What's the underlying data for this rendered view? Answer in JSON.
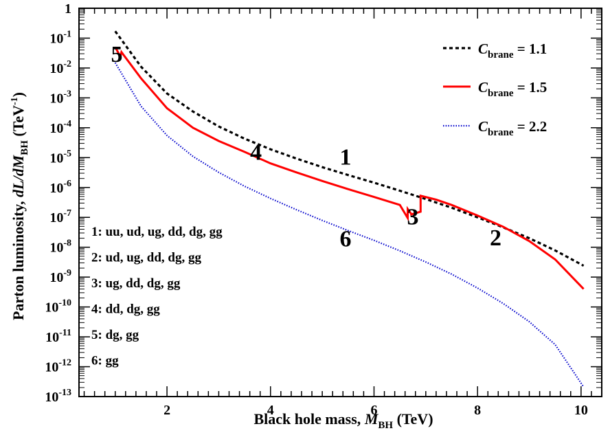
{
  "chart_data": {
    "type": "line",
    "xlabel": "Black hole mass, M_BH (TeV)",
    "ylabel": "Parton luminosity, dL/dM_BH (TeV^-1)",
    "xlim": [
      0.3,
      10.4
    ],
    "ylim": [
      1e-13,
      1
    ],
    "yscale": "log",
    "xticks": [
      2,
      4,
      6,
      8,
      10
    ],
    "yticks": [
      {
        "value": 1,
        "base": "1",
        "exp": ""
      },
      {
        "value": 0.1,
        "base": "10",
        "exp": "-1"
      },
      {
        "value": 0.01,
        "base": "10",
        "exp": "-2"
      },
      {
        "value": 0.001,
        "base": "10",
        "exp": "-3"
      },
      {
        "value": 0.0001,
        "base": "10",
        "exp": "-4"
      },
      {
        "value": 1e-05,
        "base": "10",
        "exp": "-5"
      },
      {
        "value": 1e-06,
        "base": "10",
        "exp": "-6"
      },
      {
        "value": 1e-07,
        "base": "10",
        "exp": "-7"
      },
      {
        "value": 1e-08,
        "base": "10",
        "exp": "-8"
      },
      {
        "value": 1e-09,
        "base": "10",
        "exp": "-9"
      },
      {
        "value": 1e-10,
        "base": "10",
        "exp": "-10"
      },
      {
        "value": 1e-11,
        "base": "10",
        "exp": "-11"
      },
      {
        "value": 1e-12,
        "base": "10",
        "exp": "-12"
      },
      {
        "value": 1e-13,
        "base": "10",
        "exp": "-13"
      }
    ],
    "legend_position": "top-right",
    "series": [
      {
        "name": "C_brane = 1.1",
        "label_main": "C",
        "label_sub": "brane",
        "label_value": "= 1.1",
        "color": "#000000",
        "style": "dashed",
        "x": [
          1.0,
          1.5,
          2.0,
          2.5,
          3.0,
          3.5,
          4.0,
          4.5,
          5.0,
          5.5,
          6.0,
          6.5,
          7.0,
          7.5,
          8.0,
          8.5,
          9.0,
          9.5,
          10.05
        ],
        "y": [
          0.17,
          0.011,
          0.0014,
          0.00035,
          0.00011,
          4.3e-05,
          1.9e-05,
          9.3e-06,
          4.8e-06,
          2.6e-06,
          1.45e-06,
          7.8e-07,
          4.1e-07,
          2.1e-07,
          1e-07,
          4.6e-08,
          2e-08,
          7.8e-09,
          2.4e-09
        ]
      },
      {
        "name": "C_brane = 1.5",
        "label_main": "C",
        "label_sub": "brane",
        "label_value": "= 1.5",
        "color": "#ff0000",
        "style": "solid",
        "x": [
          1.0,
          1.1,
          1.12,
          1.5,
          2.0,
          2.5,
          3.0,
          3.5,
          4.0,
          4.5,
          5.0,
          5.5,
          6.0,
          6.5,
          6.65,
          6.65,
          6.72,
          6.72,
          6.9,
          6.9,
          7.2,
          7.5,
          8.0,
          8.5,
          9.0,
          9.5,
          10.05
        ],
        "y": [
          0.05,
          0.024,
          0.034,
          0.0045,
          0.00045,
          0.0001,
          3.6e-05,
          1.55e-05,
          6.4e-06,
          3.2e-06,
          1.65e-06,
          8.8e-07,
          4.8e-07,
          2.6e-07,
          9.5e-08,
          1.9e-07,
          1.3e-07,
          1.25e-07,
          1.55e-07,
          5.3e-07,
          3.9e-07,
          2.6e-07,
          1.15e-07,
          4.8e-08,
          1.6e-08,
          3.9e-09,
          4e-10
        ]
      },
      {
        "name": "C_brane = 2.2",
        "label_main": "C",
        "label_sub": "brane",
        "label_value": "= 2.2",
        "color": "#0000cc",
        "style": "dotted",
        "x": [
          1.0,
          1.5,
          2.0,
          2.5,
          3.0,
          3.5,
          4.0,
          4.5,
          5.0,
          5.5,
          6.0,
          6.5,
          7.0,
          7.5,
          8.0,
          8.5,
          9.0,
          9.5,
          10.05
        ],
        "y": [
          0.015,
          0.00052,
          5.5e-05,
          1.1e-05,
          3.2e-06,
          1.1e-06,
          4.3e-07,
          1.8e-07,
          7.9e-08,
          3.6e-08,
          1.7e-08,
          7.6e-09,
          3.2e-09,
          1.25e-09,
          4.3e-10,
          1.3e-10,
          3.2e-11,
          5.5e-12,
          2.1e-13
        ]
      }
    ],
    "region_markers": [
      {
        "text": "5",
        "x": 1.03,
        "y": 0.03
      },
      {
        "text": "4",
        "x": 3.72,
        "y": 1.6e-05
      },
      {
        "text": "1",
        "x": 5.45,
        "y": 1.1e-05
      },
      {
        "text": "3",
        "x": 6.75,
        "y": 1.1e-07
      },
      {
        "text": "6",
        "x": 5.45,
        "y": 2e-08
      },
      {
        "text": "2",
        "x": 8.35,
        "y": 2.2e-08
      }
    ],
    "annotations": [
      "1: uu, ud, ug, dd, dg, gg",
      "2: ud, ug, dd, dg, gg",
      "3: ug, dd, dg, gg",
      "4: dd, dg, gg",
      "5: dg, gg",
      "6: gg"
    ],
    "axis_title_parts": {
      "x": {
        "pre": "Black hole mass, ",
        "var": "M",
        "sub": "BH",
        "post": " (TeV)"
      },
      "y": {
        "pre": "Parton luminosity, ",
        "var1": "dL",
        "mid": "/",
        "var2": "dM",
        "sub": "BH",
        "unit": " (TeV",
        "unit_exp": "-1",
        "close": ")"
      }
    }
  }
}
